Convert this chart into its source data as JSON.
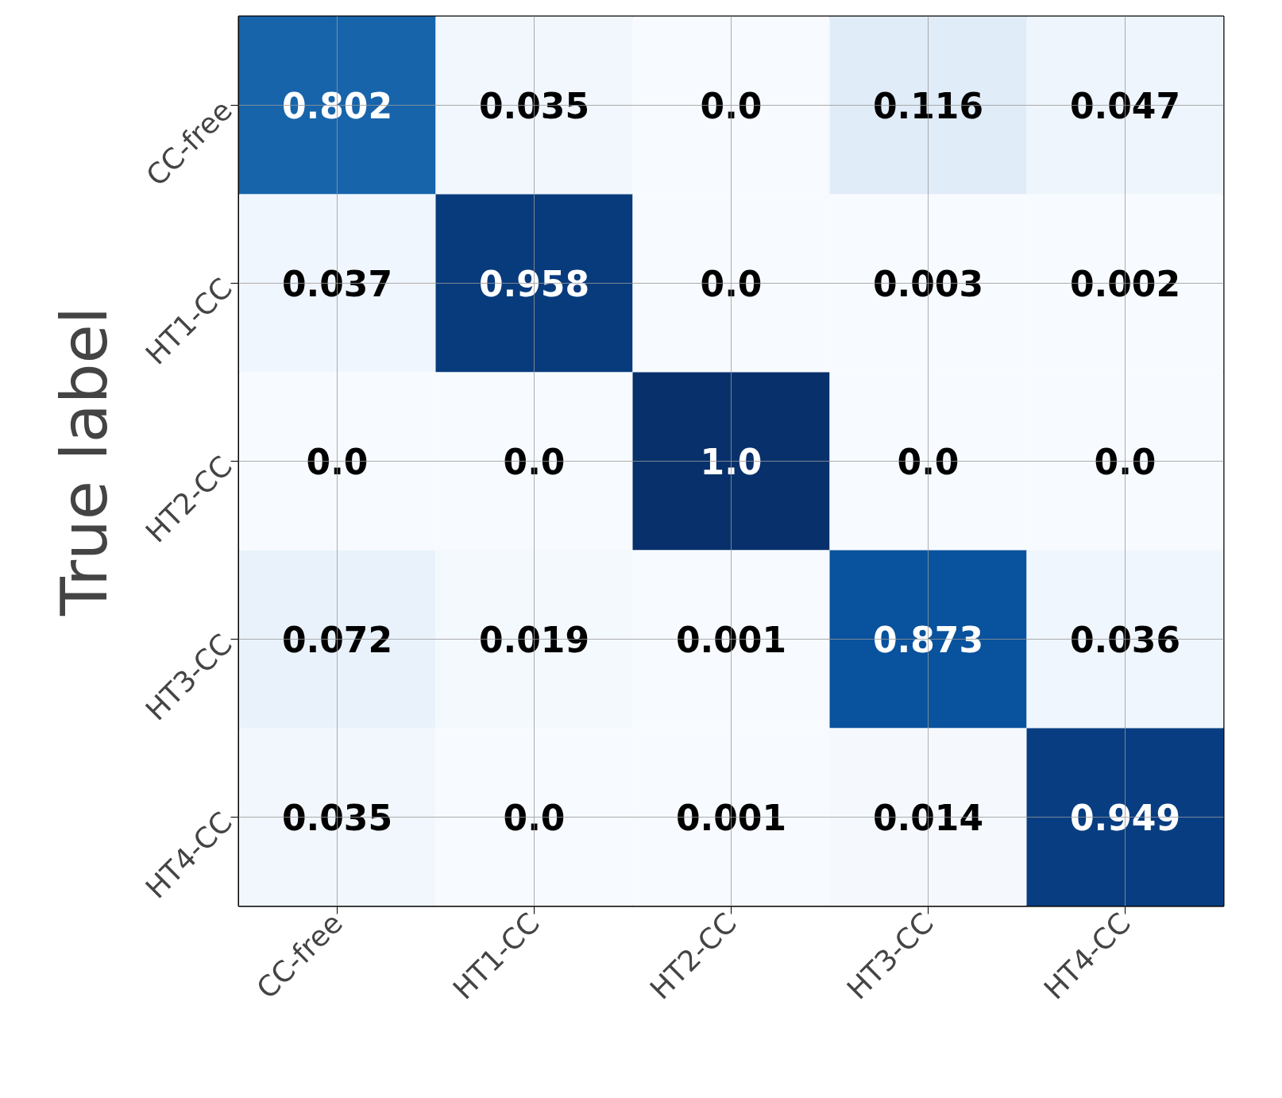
{
  "chart_data": {
    "type": "heatmap",
    "ylabel": "True label",
    "categories": [
      "CC-free",
      "HT1-CC",
      "HT2-CC",
      "HT3-CC",
      "HT4-CC"
    ],
    "y_categories": [
      "CC-free",
      "HT1-CC",
      "HT2-CC",
      "HT3-CC",
      "HT4-CC"
    ],
    "cells": [
      [
        0.802,
        0.035,
        0.0,
        0.116,
        0.047
      ],
      [
        0.037,
        0.958,
        0.0,
        0.003,
        0.002
      ],
      [
        0.0,
        0.0,
        1.0,
        0.0,
        0.0
      ],
      [
        0.072,
        0.019,
        0.001,
        0.873,
        0.036
      ],
      [
        0.035,
        0.0,
        0.001,
        0.014,
        0.949
      ]
    ],
    "cell_labels": [
      [
        "0.802",
        "0.035",
        "0.0",
        "0.116",
        "0.047"
      ],
      [
        "0.037",
        "0.958",
        "0.0",
        "0.003",
        "0.002"
      ],
      [
        "0.0",
        "0.0",
        "1.0",
        "0.0",
        "0.0"
      ],
      [
        "0.072",
        "0.019",
        "0.001",
        "0.873",
        "0.036"
      ],
      [
        "0.035",
        "0.0",
        "0.001",
        "0.014",
        "0.949"
      ]
    ],
    "grid": true
  }
}
